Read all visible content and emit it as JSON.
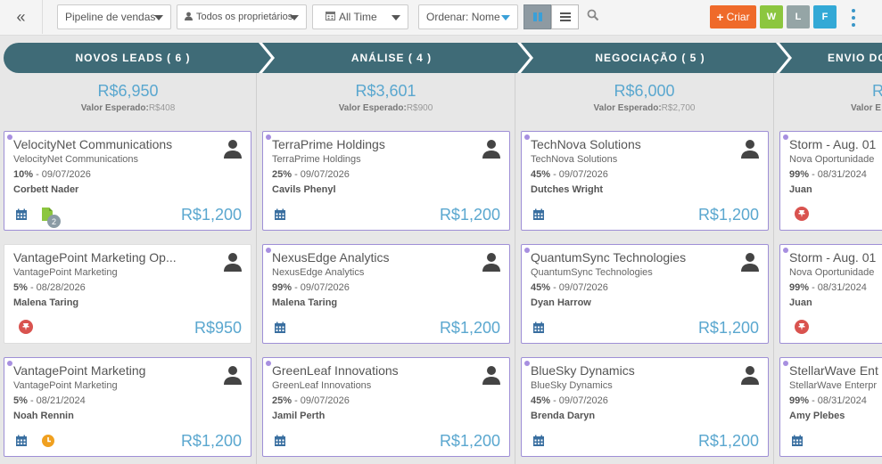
{
  "toolbar": {
    "pipeline_label": "Pipeline de vendas",
    "owner_label": "Todos os proprietários",
    "time_label": "All Time",
    "sort_label": "Ordenar: Nome",
    "create_label": "Criar",
    "w_label": "W",
    "l_label": "L",
    "f_label": "F"
  },
  "stages": [
    {
      "label": "NOVOS LEADS ( 6 )",
      "total": "R$6,950",
      "expected_label": "Valor Esperado:",
      "expected_value": "R$408"
    },
    {
      "label": "ANÁLISE ( 4 )",
      "total": "R$3,601",
      "expected_label": "Valor Esperado:",
      "expected_value": "R$900"
    },
    {
      "label": "NEGOCIAÇÃO ( 5 )",
      "total": "R$6,000",
      "expected_label": "Valor Esperado:",
      "expected_value": "R$2,700"
    },
    {
      "label": "ENVIO DO",
      "total": "R",
      "expected_label": "Valor E",
      "expected_value": ""
    }
  ],
  "cards": [
    [
      {
        "title": "VelocityNet Communications",
        "company": "VelocityNet Communications",
        "prob": "10%",
        "date": " - 09/07/2026",
        "owner": "Corbett Nader",
        "value": "R$1,200",
        "badge": "2"
      },
      {
        "title": "VantagePoint Marketing Op...",
        "company": "VantagePoint Marketing",
        "prob": "5%",
        "date": " - 08/28/2026",
        "owner": "Malena Taring",
        "value": "R$950"
      },
      {
        "title": "VantagePoint Marketing",
        "company": "VantagePoint Marketing",
        "prob": "5%",
        "date": " - 08/21/2024",
        "owner": "Noah Rennin",
        "value": "R$1,200"
      }
    ],
    [
      {
        "title": "TerraPrime Holdings",
        "company": "TerraPrime Holdings",
        "prob": "25%",
        "date": " - 09/07/2026",
        "owner": "Cavils Phenyl",
        "value": "R$1,200"
      },
      {
        "title": "NexusEdge Analytics",
        "company": "NexusEdge Analytics",
        "prob": "99%",
        "date": " - 09/07/2026",
        "owner": "Malena Taring",
        "value": "R$1,200"
      },
      {
        "title": "GreenLeaf Innovations",
        "company": "GreenLeaf Innovations",
        "prob": "25%",
        "date": " - 09/07/2026",
        "owner": "Jamil Perth",
        "value": "R$1,200"
      }
    ],
    [
      {
        "title": "TechNova Solutions",
        "company": "TechNova Solutions",
        "prob": "45%",
        "date": " - 09/07/2026",
        "owner": "Dutches Wright",
        "value": "R$1,200"
      },
      {
        "title": "QuantumSync Technologies",
        "company": "QuantumSync Technologies",
        "prob": "45%",
        "date": " - 09/07/2026",
        "owner": "Dyan Harrow",
        "value": "R$1,200"
      },
      {
        "title": "BlueSky Dynamics",
        "company": "BlueSky Dynamics",
        "prob": "45%",
        "date": " - 09/07/2026",
        "owner": "Brenda Daryn",
        "value": "R$1,200"
      }
    ],
    [
      {
        "title": "Storm - Aug. 01",
        "company": "Nova Oportunidade",
        "prob": "99%",
        "date": " - 08/31/2024",
        "owner": "Juan"
      },
      {
        "title": "Storm - Aug. 01",
        "company": "Nova Oportunidade",
        "prob": "99%",
        "date": " - 08/31/2024",
        "owner": "Juan"
      },
      {
        "title": "StellarWave Ent",
        "company": "StellarWave Enterpr",
        "prob": "99%",
        "date": " - 08/31/2024",
        "owner": "Amy Plebes"
      }
    ]
  ],
  "icons": {
    "collapse": "double-chevron-left-icon",
    "owner": "user-icon",
    "time": "calendar-icon",
    "search": "search-icon",
    "card_avatar": "user-avatar-icon",
    "calendar": "calendar-icon",
    "document": "document-icon",
    "pin": "pin-icon",
    "clock": "clock-icon"
  },
  "colors": {
    "stage_bar": "#3f6b77",
    "value_blue": "#5aa7cf",
    "card_border": "#9e8fd6",
    "create_orange": "#ef6a2a",
    "w_green": "#8cc63f",
    "l_gray": "#95a5a6",
    "f_blue": "#33a9d6",
    "pin_red": "#d9534f",
    "clock_orange": "#f0a020"
  }
}
